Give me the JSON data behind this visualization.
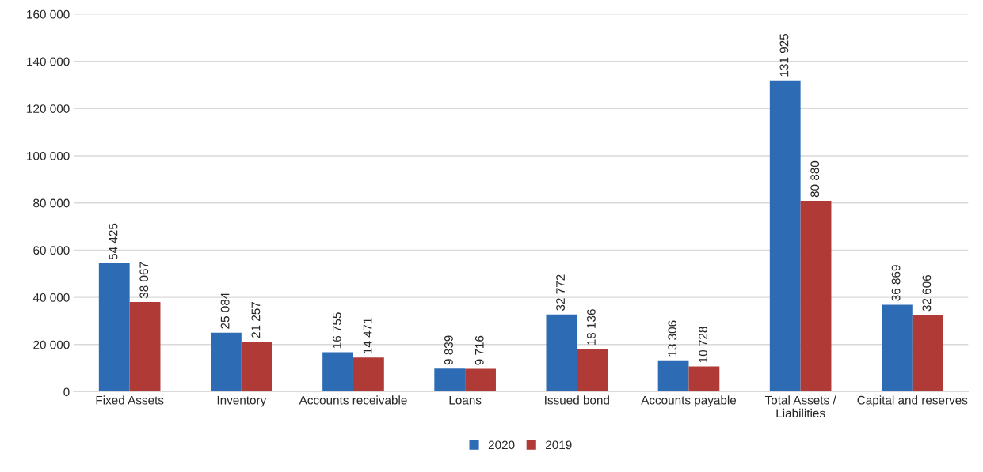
{
  "chart_data": {
    "type": "bar",
    "categories": [
      "Fixed Assets",
      "Inventory",
      "Accounts receivable",
      "Loans",
      "Issued bond",
      "Accounts payable",
      "Total Assets /\nLiabilities",
      "Capital and reserves"
    ],
    "series": [
      {
        "name": "2020",
        "color": "#2e6bb5",
        "values": [
          54425,
          25084,
          16755,
          9839,
          32772,
          13306,
          131925,
          36869
        ],
        "value_labels": [
          "54 425",
          "25 084",
          "16 755",
          "9 839",
          "32 772",
          "13 306",
          "131 925",
          "36 869"
        ]
      },
      {
        "name": "2019",
        "color": "#b03a35",
        "values": [
          38067,
          21257,
          14471,
          9716,
          18136,
          10728,
          80880,
          32606
        ],
        "value_labels": [
          "38 067",
          "21 257",
          "14 471",
          "9 716",
          "18 136",
          "10 728",
          "80 880",
          "32 606"
        ]
      }
    ],
    "ylim": [
      0,
      160000
    ],
    "yticks": [
      0,
      {
        "value": 20000,
        "label": "20 000"
      },
      {
        "value": 40000,
        "label": "40 000"
      },
      {
        "value": 60000,
        "label": "60 000"
      },
      {
        "value": 80000,
        "label": "80 000"
      },
      {
        "value": 100000,
        "label": "100 000"
      },
      {
        "value": 120000,
        "label": "120 000"
      },
      {
        "value": 140000,
        "label": "140 000"
      },
      {
        "value": 160000,
        "label": "160 000"
      }
    ],
    "grid": "y",
    "legend": "bottom"
  }
}
